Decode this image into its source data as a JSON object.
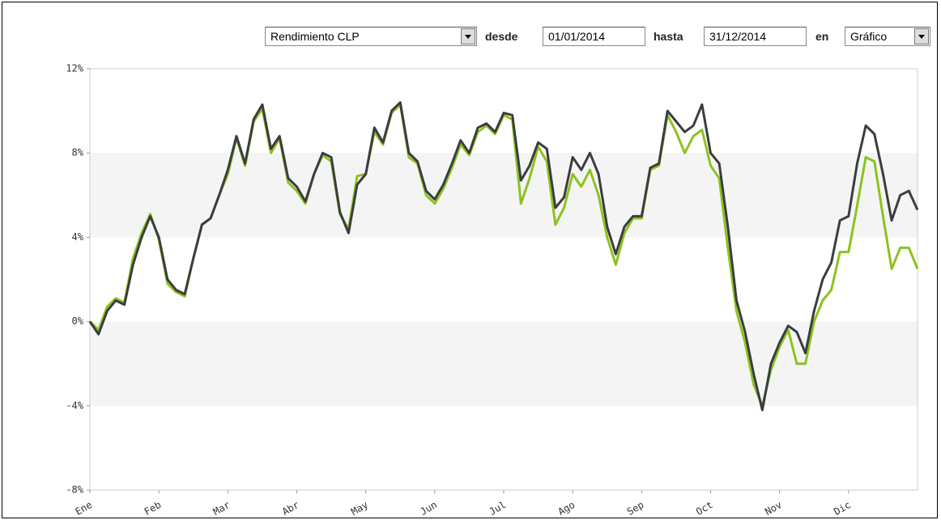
{
  "controls": {
    "measure": "Rendimiento CLP",
    "from_label": "desde",
    "from": "01/01/2014",
    "to_label": "hasta",
    "to": "31/12/2014",
    "view_label": "en",
    "view": "Gráfico"
  },
  "chart_data": {
    "type": "line",
    "x": [
      0,
      1,
      2,
      3,
      4,
      5,
      6,
      7,
      8,
      9,
      10,
      11,
      12,
      13,
      14,
      15,
      16,
      17,
      18,
      19,
      20,
      21,
      22,
      23,
      24,
      25,
      26,
      27,
      28,
      29,
      30,
      31,
      32,
      33,
      34,
      35,
      36,
      37,
      38,
      39,
      40,
      41,
      42,
      43,
      44,
      45,
      46,
      47,
      48,
      49,
      50,
      51,
      52,
      53,
      54,
      55,
      56,
      57,
      58,
      59,
      60,
      61,
      62,
      63,
      64,
      65,
      66,
      67,
      68,
      69,
      70,
      71,
      72,
      73,
      74,
      75,
      76,
      77,
      78,
      79,
      80,
      81,
      82,
      83,
      84,
      85,
      86,
      87,
      88,
      89,
      90,
      91,
      92,
      93,
      94,
      95,
      96
    ],
    "xlim": [
      0,
      96
    ],
    "xticks": [
      {
        "value": 0,
        "label": "Ene"
      },
      {
        "value": 8,
        "label": "Feb"
      },
      {
        "value": 16,
        "label": "Mar"
      },
      {
        "value": 24,
        "label": "Abr"
      },
      {
        "value": 32,
        "label": "May"
      },
      {
        "value": 40,
        "label": "Jun"
      },
      {
        "value": 48,
        "label": "Jul"
      },
      {
        "value": 56,
        "label": "Ago"
      },
      {
        "value": 64,
        "label": "Sep"
      },
      {
        "value": 72,
        "label": "Oct"
      },
      {
        "value": 80,
        "label": "Nov"
      },
      {
        "value": 88,
        "label": "Dic"
      }
    ],
    "ylim": [
      -8,
      12
    ],
    "yticks": [
      {
        "value": -8,
        "label": "-8%"
      },
      {
        "value": -4,
        "label": "-4%"
      },
      {
        "value": 0,
        "label": "0%"
      },
      {
        "value": 4,
        "label": "4%"
      },
      {
        "value": 8,
        "label": "8%"
      },
      {
        "value": 12,
        "label": "12%"
      }
    ],
    "series": [
      {
        "color": "#8dc21f",
        "values": [
          0,
          -0.4,
          0.7,
          1.1,
          0.9,
          3.0,
          4.2,
          5.1,
          3.9,
          1.8,
          1.4,
          1.2,
          3.0,
          4.6,
          4.9,
          6.0,
          7.0,
          8.7,
          7.4,
          9.5,
          10.1,
          8.0,
          8.7,
          6.6,
          6.2,
          5.6,
          7.0,
          7.9,
          7.6,
          5.1,
          4.4,
          6.9,
          7.0,
          9.0,
          8.4,
          9.9,
          10.3,
          7.8,
          7.5,
          6.0,
          5.6,
          6.3,
          7.3,
          8.4,
          7.9,
          9.0,
          9.3,
          8.9,
          9.8,
          9.6,
          5.6,
          6.8,
          8.3,
          7.6,
          4.6,
          5.4,
          7.0,
          6.4,
          7.2,
          6.0,
          4.0,
          2.7,
          4.2,
          4.9,
          4.9,
          7.2,
          7.4,
          9.8,
          9.0,
          8.0,
          8.8,
          9.1,
          7.4,
          6.8,
          3.5,
          0.5,
          -1.0,
          -3.0,
          -4.0,
          -2.3,
          -1.2,
          -0.4,
          -2.0,
          -2.0,
          0.0,
          1.0,
          1.5,
          3.3,
          3.3,
          5.5,
          7.8,
          7.6,
          5.0,
          2.5,
          3.5,
          3.5,
          2.5
        ]
      },
      {
        "color": "#3a3d40",
        "values": [
          0,
          -0.6,
          0.5,
          1.0,
          0.8,
          2.7,
          4.0,
          5.0,
          4.0,
          2.0,
          1.5,
          1.3,
          3.0,
          4.6,
          4.9,
          6.0,
          7.2,
          8.8,
          7.5,
          9.6,
          10.3,
          8.2,
          8.8,
          6.8,
          6.4,
          5.7,
          7.0,
          8.0,
          7.8,
          5.2,
          4.2,
          6.5,
          7.0,
          9.2,
          8.5,
          10.0,
          10.4,
          8.0,
          7.6,
          6.2,
          5.8,
          6.5,
          7.5,
          8.6,
          8.0,
          9.2,
          9.4,
          9.0,
          9.9,
          9.8,
          6.7,
          7.4,
          8.5,
          8.2,
          5.4,
          5.9,
          7.8,
          7.2,
          8.0,
          7.0,
          4.5,
          3.2,
          4.5,
          5.0,
          5.0,
          7.3,
          7.5,
          10.0,
          9.5,
          9.0,
          9.3,
          10.3,
          8.0,
          7.5,
          4.5,
          1.0,
          -0.5,
          -2.5,
          -4.2,
          -2.0,
          -1.0,
          -0.2,
          -0.5,
          -1.5,
          0.5,
          2.0,
          2.8,
          4.8,
          5.0,
          7.5,
          9.3,
          8.9,
          7.0,
          4.8,
          6.0,
          6.2,
          5.3
        ]
      }
    ]
  }
}
